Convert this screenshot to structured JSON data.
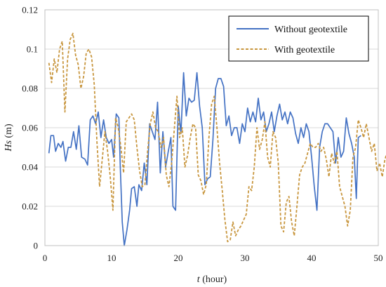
{
  "chart_data": {
    "type": "line",
    "xlabel": {
      "italic": "t",
      "rest": " (hour)"
    },
    "ylabel": {
      "italic": "Hs",
      "rest": " (m)"
    },
    "xlim": [
      0,
      50
    ],
    "ylim": [
      0,
      0.12
    ],
    "x_ticks": [
      "0",
      "10",
      "20",
      "30",
      "40",
      "50"
    ],
    "y_ticks": [
      "0",
      "0.02",
      "0.04",
      "0.06",
      "0.08",
      "0.1",
      "0.12"
    ],
    "grid": "horizontal",
    "legend_position": "top-right",
    "series": [
      {
        "name": "Without geotextile",
        "color": "#4472C4",
        "style": "solid",
        "points": [
          [
            0.6,
            0.047
          ],
          [
            0.9,
            0.056
          ],
          [
            1.3,
            0.056
          ],
          [
            1.6,
            0.048
          ],
          [
            2.0,
            0.052
          ],
          [
            2.4,
            0.05
          ],
          [
            2.7,
            0.053
          ],
          [
            3.1,
            0.043
          ],
          [
            3.5,
            0.05
          ],
          [
            3.9,
            0.05
          ],
          [
            4.3,
            0.058
          ],
          [
            4.7,
            0.049
          ],
          [
            5.1,
            0.061
          ],
          [
            5.5,
            0.045
          ],
          [
            6.0,
            0.044
          ],
          [
            6.4,
            0.041
          ],
          [
            6.8,
            0.064
          ],
          [
            7.2,
            0.066
          ],
          [
            7.6,
            0.062
          ],
          [
            8.0,
            0.068
          ],
          [
            8.4,
            0.055
          ],
          [
            8.8,
            0.064
          ],
          [
            9.2,
            0.055
          ],
          [
            9.6,
            0.052
          ],
          [
            10.0,
            0.054
          ],
          [
            10.3,
            0.045
          ],
          [
            10.7,
            0.067
          ],
          [
            11.1,
            0.065
          ],
          [
            11.3,
            0.04
          ],
          [
            11.6,
            0.012
          ],
          [
            11.9,
            0.0
          ],
          [
            12.3,
            0.008
          ],
          [
            12.7,
            0.018
          ],
          [
            13.0,
            0.029
          ],
          [
            13.4,
            0.03
          ],
          [
            13.8,
            0.02
          ],
          [
            14.1,
            0.031
          ],
          [
            14.5,
            0.028
          ],
          [
            14.9,
            0.042
          ],
          [
            15.3,
            0.031
          ],
          [
            15.7,
            0.062
          ],
          [
            16.1,
            0.058
          ],
          [
            16.5,
            0.054
          ],
          [
            16.9,
            0.073
          ],
          [
            17.3,
            0.037
          ],
          [
            17.7,
            0.058
          ],
          [
            18.1,
            0.04
          ],
          [
            18.5,
            0.048
          ],
          [
            18.9,
            0.055
          ],
          [
            19.2,
            0.02
          ],
          [
            19.6,
            0.018
          ],
          [
            20.0,
            0.071
          ],
          [
            20.4,
            0.057
          ],
          [
            20.8,
            0.088
          ],
          [
            21.2,
            0.066
          ],
          [
            21.6,
            0.075
          ],
          [
            22.0,
            0.073
          ],
          [
            22.4,
            0.074
          ],
          [
            22.8,
            0.088
          ],
          [
            23.2,
            0.071
          ],
          [
            23.6,
            0.06
          ],
          [
            24.0,
            0.031
          ],
          [
            24.4,
            0.034
          ],
          [
            24.8,
            0.035
          ],
          [
            25.2,
            0.054
          ],
          [
            25.6,
            0.08
          ],
          [
            26.0,
            0.085
          ],
          [
            26.4,
            0.085
          ],
          [
            26.8,
            0.081
          ],
          [
            27.2,
            0.061
          ],
          [
            27.6,
            0.066
          ],
          [
            28.0,
            0.056
          ],
          [
            28.4,
            0.06
          ],
          [
            28.8,
            0.06
          ],
          [
            29.2,
            0.052
          ],
          [
            29.6,
            0.062
          ],
          [
            30.0,
            0.058
          ],
          [
            30.4,
            0.07
          ],
          [
            30.8,
            0.063
          ],
          [
            31.2,
            0.068
          ],
          [
            31.6,
            0.063
          ],
          [
            32.0,
            0.075
          ],
          [
            32.4,
            0.064
          ],
          [
            32.8,
            0.068
          ],
          [
            33.2,
            0.058
          ],
          [
            33.6,
            0.062
          ],
          [
            34.0,
            0.068
          ],
          [
            34.4,
            0.058
          ],
          [
            34.8,
            0.066
          ],
          [
            35.2,
            0.072
          ],
          [
            35.6,
            0.064
          ],
          [
            36.0,
            0.068
          ],
          [
            36.4,
            0.062
          ],
          [
            36.8,
            0.068
          ],
          [
            37.2,
            0.065
          ],
          [
            37.6,
            0.057
          ],
          [
            38.0,
            0.052
          ],
          [
            38.4,
            0.06
          ],
          [
            38.8,
            0.055
          ],
          [
            39.2,
            0.062
          ],
          [
            39.6,
            0.058
          ],
          [
            40.0,
            0.045
          ],
          [
            40.4,
            0.03
          ],
          [
            40.8,
            0.018
          ],
          [
            41.2,
            0.05
          ],
          [
            41.6,
            0.058
          ],
          [
            42.0,
            0.062
          ],
          [
            42.4,
            0.062
          ],
          [
            42.8,
            0.06
          ],
          [
            43.2,
            0.058
          ],
          [
            43.6,
            0.042
          ],
          [
            44.0,
            0.055
          ],
          [
            44.4,
            0.045
          ],
          [
            44.8,
            0.048
          ],
          [
            45.2,
            0.065
          ],
          [
            45.6,
            0.057
          ],
          [
            46.0,
            0.052
          ],
          [
            46.4,
            0.045
          ],
          [
            46.7,
            0.024
          ],
          [
            47.0,
            0.055
          ],
          [
            47.4,
            0.056
          ]
        ]
      },
      {
        "name": "With geotextile",
        "color": "#C8963E",
        "style": "dashed",
        "points": [
          [
            0.6,
            0.093
          ],
          [
            1.0,
            0.083
          ],
          [
            1.4,
            0.095
          ],
          [
            1.8,
            0.088
          ],
          [
            2.2,
            0.1
          ],
          [
            2.6,
            0.104
          ],
          [
            3.0,
            0.068
          ],
          [
            3.4,
            0.095
          ],
          [
            3.8,
            0.105
          ],
          [
            4.2,
            0.108
          ],
          [
            4.6,
            0.097
          ],
          [
            5.0,
            0.092
          ],
          [
            5.4,
            0.08
          ],
          [
            5.8,
            0.086
          ],
          [
            6.2,
            0.098
          ],
          [
            6.6,
            0.1
          ],
          [
            7.0,
            0.096
          ],
          [
            7.4,
            0.082
          ],
          [
            7.8,
            0.053
          ],
          [
            8.2,
            0.03
          ],
          [
            8.6,
            0.044
          ],
          [
            9.0,
            0.058
          ],
          [
            9.4,
            0.048
          ],
          [
            9.8,
            0.035
          ],
          [
            10.2,
            0.018
          ],
          [
            10.6,
            0.065
          ],
          [
            11.0,
            0.06
          ],
          [
            11.4,
            0.05
          ],
          [
            11.8,
            0.037
          ],
          [
            12.2,
            0.063
          ],
          [
            12.6,
            0.065
          ],
          [
            13.0,
            0.067
          ],
          [
            13.4,
            0.064
          ],
          [
            13.8,
            0.05
          ],
          [
            14.2,
            0.038
          ],
          [
            14.6,
            0.03
          ],
          [
            15.0,
            0.031
          ],
          [
            15.4,
            0.048
          ],
          [
            15.8,
            0.062
          ],
          [
            16.2,
            0.068
          ],
          [
            16.6,
            0.06
          ],
          [
            17.0,
            0.058
          ],
          [
            17.4,
            0.05
          ],
          [
            17.8,
            0.055
          ],
          [
            18.2,
            0.036
          ],
          [
            18.6,
            0.03
          ],
          [
            19.0,
            0.042
          ],
          [
            19.4,
            0.059
          ],
          [
            19.8,
            0.076
          ],
          [
            20.2,
            0.055
          ],
          [
            20.6,
            0.06
          ],
          [
            21.0,
            0.04
          ],
          [
            21.4,
            0.046
          ],
          [
            21.8,
            0.055
          ],
          [
            22.2,
            0.062
          ],
          [
            22.6,
            0.06
          ],
          [
            23.0,
            0.036
          ],
          [
            23.4,
            0.033
          ],
          [
            23.8,
            0.026
          ],
          [
            24.2,
            0.031
          ],
          [
            24.6,
            0.055
          ],
          [
            25.0,
            0.072
          ],
          [
            25.4,
            0.076
          ],
          [
            25.8,
            0.06
          ],
          [
            26.2,
            0.042
          ],
          [
            26.6,
            0.028
          ],
          [
            27.0,
            0.013
          ],
          [
            27.4,
            0.002
          ],
          [
            27.8,
            0.003
          ],
          [
            28.2,
            0.012
          ],
          [
            28.6,
            0.005
          ],
          [
            29.0,
            0.008
          ],
          [
            29.4,
            0.01
          ],
          [
            29.8,
            0.013
          ],
          [
            30.2,
            0.016
          ],
          [
            30.6,
            0.03
          ],
          [
            31.0,
            0.028
          ],
          [
            31.4,
            0.04
          ],
          [
            31.8,
            0.06
          ],
          [
            32.2,
            0.049
          ],
          [
            32.6,
            0.054
          ],
          [
            33.0,
            0.063
          ],
          [
            33.4,
            0.045
          ],
          [
            33.8,
            0.04
          ],
          [
            34.2,
            0.058
          ],
          [
            34.6,
            0.055
          ],
          [
            35.0,
            0.042
          ],
          [
            35.4,
            0.01
          ],
          [
            35.8,
            0.007
          ],
          [
            36.2,
            0.022
          ],
          [
            36.6,
            0.025
          ],
          [
            37.0,
            0.012
          ],
          [
            37.4,
            0.005
          ],
          [
            37.8,
            0.02
          ],
          [
            38.2,
            0.036
          ],
          [
            38.6,
            0.04
          ],
          [
            39.0,
            0.042
          ],
          [
            39.4,
            0.047
          ],
          [
            39.8,
            0.052
          ],
          [
            40.2,
            0.05
          ],
          [
            40.6,
            0.05
          ],
          [
            41.0,
            0.052
          ],
          [
            41.4,
            0.048
          ],
          [
            41.8,
            0.05
          ],
          [
            42.2,
            0.044
          ],
          [
            42.6,
            0.035
          ],
          [
            43.0,
            0.047
          ],
          [
            43.4,
            0.042
          ],
          [
            43.8,
            0.048
          ],
          [
            44.2,
            0.03
          ],
          [
            44.6,
            0.025
          ],
          [
            45.0,
            0.02
          ],
          [
            45.4,
            0.01
          ],
          [
            45.8,
            0.018
          ],
          [
            46.2,
            0.045
          ],
          [
            46.6,
            0.05
          ],
          [
            47.0,
            0.064
          ],
          [
            47.4,
            0.06
          ],
          [
            47.8,
            0.055
          ],
          [
            48.2,
            0.062
          ],
          [
            48.6,
            0.055
          ],
          [
            49.0,
            0.048
          ],
          [
            49.4,
            0.052
          ],
          [
            49.8,
            0.038
          ],
          [
            50.2,
            0.042
          ],
          [
            50.6,
            0.035
          ],
          [
            51.0,
            0.044
          ],
          [
            51.4,
            0.048
          ],
          [
            51.8,
            0.045
          ]
        ]
      }
    ]
  }
}
